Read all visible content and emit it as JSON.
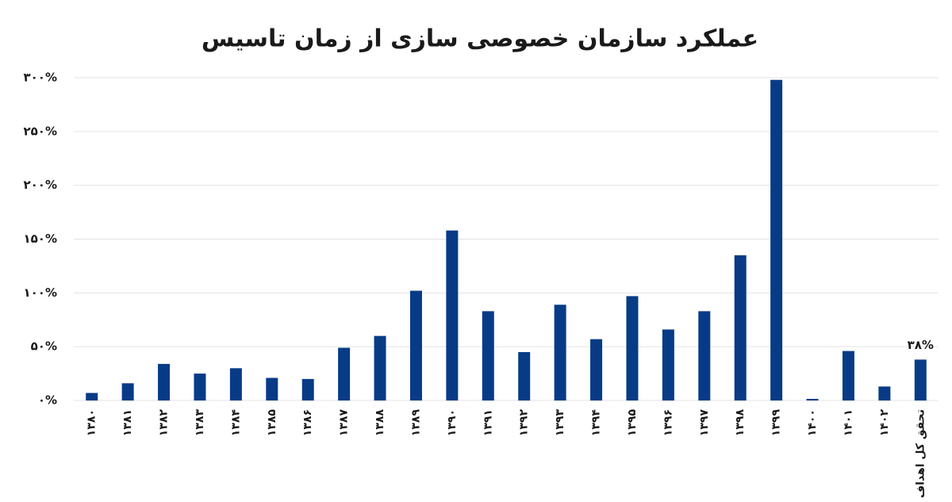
{
  "chart_data": {
    "type": "bar",
    "title": "عملکرد سازمان خصوصی سازی از زمان تاسیس",
    "categories": [
      "۱۳۸۰",
      "۱۳۸۱",
      "۱۳۸۲",
      "۱۳۸۳",
      "۱۳۸۴",
      "۱۳۸۵",
      "۱۳۸۶",
      "۱۳۸۷",
      "۱۳۸۸",
      "۱۳۸۹",
      "۱۳۹۰",
      "۱۳۹۱",
      "۱۳۹۲",
      "۱۳۹۳",
      "۱۳۹۴",
      "۱۳۹۵",
      "۱۳۹۶",
      "۱۳۹۷",
      "۱۳۹۸",
      "۱۳۹۹",
      "۱۴۰۰",
      "۱۴۰۱",
      "۱۴۰۲",
      "تحقق کل اهداف"
    ],
    "values": [
      7,
      16,
      34,
      25,
      30,
      21,
      20,
      49,
      60,
      102,
      158,
      83,
      45,
      89,
      57,
      97,
      66,
      83,
      135,
      298,
      1.5,
      46,
      13,
      38
    ],
    "value_labels": [
      null,
      null,
      null,
      null,
      null,
      null,
      null,
      null,
      null,
      null,
      null,
      null,
      null,
      null,
      null,
      null,
      null,
      null,
      null,
      null,
      null,
      null,
      null,
      "۳۸%"
    ],
    "color": "#083b86",
    "ylim": [
      0,
      300
    ],
    "yticks": [
      {
        "value": 0,
        "label": "۰%"
      },
      {
        "value": 50,
        "label": "۵۰%"
      },
      {
        "value": 100,
        "label": "۱۰۰%"
      },
      {
        "value": 150,
        "label": "۱۵۰%"
      },
      {
        "value": 200,
        "label": "۲۰۰%"
      },
      {
        "value": 250,
        "label": "۲۵۰%"
      },
      {
        "value": 300,
        "label": "۳۰۰%"
      }
    ],
    "grid": true
  }
}
